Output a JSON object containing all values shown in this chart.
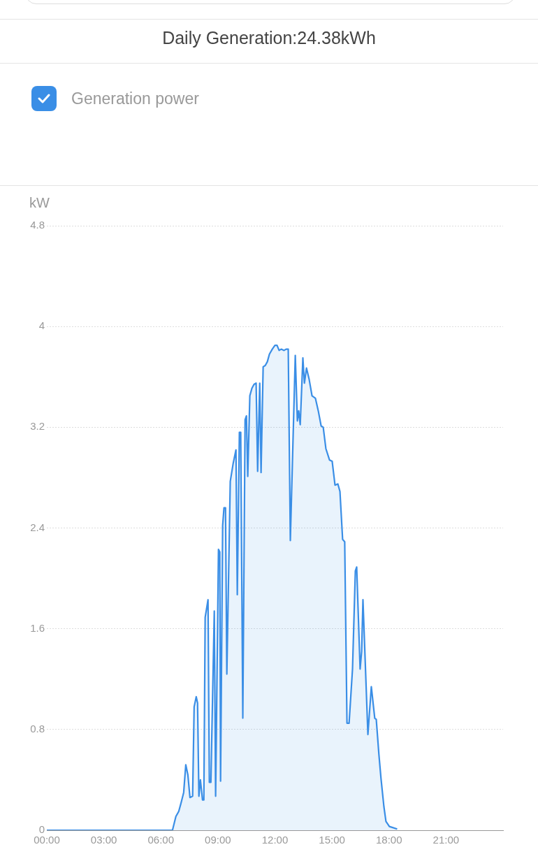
{
  "chart_data": {
    "type": "area",
    "title": "Daily Generation:24.38kWh",
    "ylabel": "kW",
    "legend": "top left",
    "grid": "y",
    "marker": "none",
    "line_style": "solid",
    "xlim": [
      0,
      24
    ],
    "xticks": [
      {
        "value": 0,
        "label": "00:00"
      },
      {
        "value": 3,
        "label": "03:00"
      },
      {
        "value": 6,
        "label": "06:00"
      },
      {
        "value": 9,
        "label": "09:00"
      },
      {
        "value": 12,
        "label": "12:00"
      },
      {
        "value": 15,
        "label": "15:00"
      },
      {
        "value": 18,
        "label": "18:00"
      },
      {
        "value": 21,
        "label": "21:00"
      }
    ],
    "ylim": [
      0,
      4.8
    ],
    "yticks": [
      0,
      0.8,
      1.6,
      2.4,
      3.2,
      4,
      4.8
    ],
    "x": [
      0,
      6.61,
      6.79,
      6.94,
      7.05,
      7.2,
      7.31,
      7.42,
      7.53,
      7.67,
      7.75,
      7.86,
      7.93,
      8,
      8.08,
      8.19,
      8.26,
      8.33,
      8.48,
      8.55,
      8.63,
      8.81,
      8.88,
      9.03,
      9.1,
      9.14,
      9.25,
      9.32,
      9.4,
      9.47,
      9.65,
      9.8,
      9.95,
      10.02,
      10.13,
      10.2,
      10.31,
      10.43,
      10.5,
      10.57,
      10.68,
      10.79,
      10.9,
      11.01,
      11.09,
      11.2,
      11.27,
      11.38,
      11.49,
      11.6,
      11.71,
      11.86,
      12,
      12.11,
      12.22,
      12.33,
      12.48,
      12.59,
      12.7,
      12.81,
      13.07,
      13.18,
      13.25,
      13.33,
      13.47,
      13.55,
      13.66,
      13.8,
      13.95,
      14.13,
      14.28,
      14.43,
      14.54,
      14.68,
      14.87,
      15.01,
      15.16,
      15.31,
      15.42,
      15.56,
      15.67,
      15.79,
      15.9,
      16.08,
      16.23,
      16.3,
      16.48,
      16.56,
      16.63,
      16.89,
      17.07,
      17.25,
      17.33,
      17.47,
      17.58,
      17.73,
      17.84,
      18.02,
      18.43
    ],
    "series": [
      {
        "name": "Generation power",
        "color": "#3a8ee6",
        "values": [
          0,
          0,
          0.11,
          0.15,
          0.21,
          0.3,
          0.52,
          0.44,
          0.26,
          0.27,
          0.98,
          1.06,
          1.01,
          0.27,
          0.4,
          0.24,
          0.24,
          1.69,
          1.83,
          0.38,
          0.38,
          1.74,
          0.27,
          2.23,
          2.21,
          0.39,
          2.42,
          2.56,
          2.56,
          1.24,
          2.77,
          2.91,
          3.02,
          1.87,
          3.16,
          3.16,
          0.89,
          3.26,
          3.29,
          2.81,
          3.45,
          3.51,
          3.54,
          3.55,
          2.85,
          3.55,
          2.84,
          3.68,
          3.69,
          3.72,
          3.78,
          3.82,
          3.85,
          3.85,
          3.81,
          3.82,
          3.81,
          3.82,
          3.82,
          2.3,
          3.77,
          3.25,
          3.33,
          3.22,
          3.75,
          3.55,
          3.67,
          3.58,
          3.45,
          3.43,
          3.33,
          3.21,
          3.2,
          3.03,
          2.94,
          2.93,
          2.74,
          2.75,
          2.69,
          2.31,
          2.29,
          0.85,
          0.85,
          1.28,
          2.06,
          2.09,
          1.28,
          1.42,
          1.83,
          0.76,
          1.14,
          0.89,
          0.88,
          0.6,
          0.41,
          0.19,
          0.07,
          0.03,
          0.01
        ]
      }
    ]
  }
}
